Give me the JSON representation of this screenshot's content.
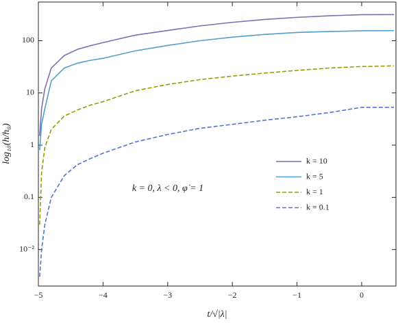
{
  "chart_data": {
    "type": "line",
    "xlabel": "t/√|λ|",
    "ylabel": "log₁₀(h/h₀)",
    "annotation": "k = 0,    λ < 0,    φ̇ = 1",
    "log_y": true,
    "legend": "right",
    "xlim": [
      -5,
      0.53
    ],
    "ylim": [
      0.002,
      550
    ],
    "xticks": [
      {
        "value": -5,
        "label": "−5"
      },
      {
        "value": -4,
        "label": "−4"
      },
      {
        "value": -3,
        "label": "−3"
      },
      {
        "value": -2,
        "label": "−2"
      },
      {
        "value": -1,
        "label": "−1"
      },
      0
    ],
    "yticks": [
      {
        "value": 0.01,
        "label": "10⁻²"
      },
      0.1,
      1,
      10,
      100
    ],
    "x": [
      -4.98,
      -4.95,
      -4.9,
      -4.8,
      -4.6,
      -4.4,
      -4.2,
      -4,
      -3.5,
      -3,
      -2.5,
      -2,
      -1.5,
      -1,
      -0.5,
      0,
      0.5
    ],
    "series": [
      {
        "name": "k = 10",
        "color": "#7b6fb0",
        "dash": "solid",
        "values": [
          1.5,
          5,
          12,
          30,
          52,
          68,
          80,
          92,
          128,
          157,
          192,
          225,
          255,
          280,
          300,
          315,
          316
        ]
      },
      {
        "name": "k = 5",
        "color": "#4e9fcf",
        "dash": "solid",
        "values": [
          0.8,
          2.5,
          5,
          17,
          30,
          37,
          42,
          46,
          64,
          81,
          100,
          117,
          132,
          144,
          150,
          155,
          156
        ]
      },
      {
        "name": "k = 1",
        "color": "#9a9a00",
        "dash": "dashed",
        "values": [
          0.03,
          0.3,
          0.9,
          2,
          3.6,
          4.7,
          5.8,
          6.8,
          11,
          14.5,
          18,
          21,
          24,
          27,
          30,
          32,
          33
        ]
      },
      {
        "name": "k = 0.1",
        "color": "#4f74d0",
        "dash": "dashed",
        "values": [
          0.003,
          0.01,
          0.03,
          0.1,
          0.26,
          0.42,
          0.55,
          0.7,
          1.15,
          1.6,
          2.1,
          2.5,
          3,
          3.5,
          4.2,
          5.3,
          5.3
        ]
      }
    ]
  }
}
